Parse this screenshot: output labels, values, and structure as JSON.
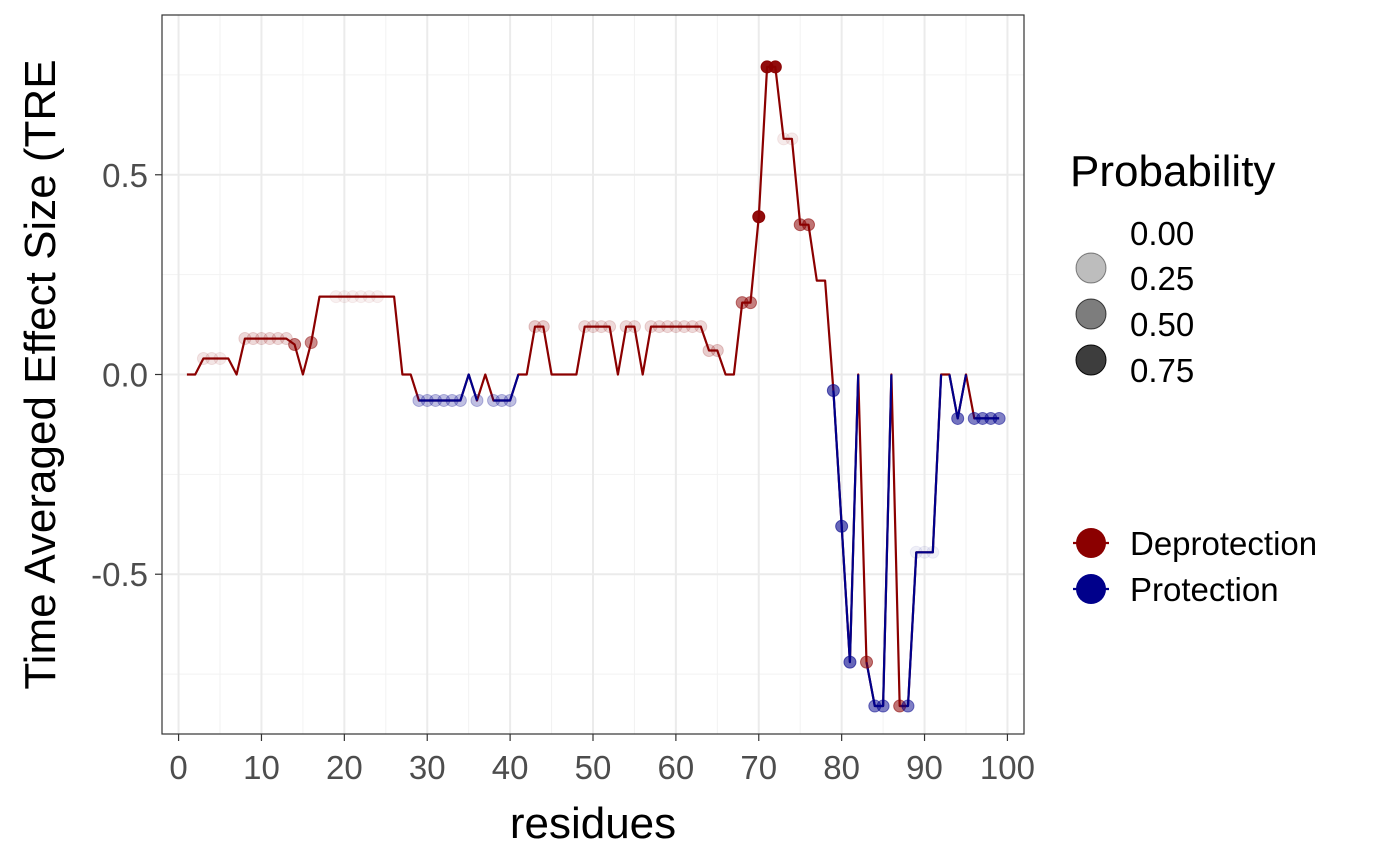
{
  "chart_data": {
    "type": "line",
    "title": "",
    "xlabel": "residues",
    "ylabel": "Time Averaged Effect Size (TRE",
    "xlim": [
      -2,
      102
    ],
    "ylim": [
      -0.9,
      0.9
    ],
    "x_ticks": [
      0,
      10,
      20,
      30,
      40,
      50,
      60,
      70,
      80,
      90,
      100
    ],
    "x_tick_labels": [
      "0",
      "10",
      "20",
      "30",
      "40",
      "50",
      "60",
      "70",
      "80",
      "90",
      "100"
    ],
    "y_ticks": [
      -0.5,
      0,
      0.5
    ],
    "y_tick_labels": [
      "-0.5",
      "0.0",
      "0.5"
    ],
    "grid": true,
    "legend_position": "right",
    "size_legend": {
      "title": "Probability",
      "entries": [
        {
          "label": "0.00",
          "value": 0.0
        },
        {
          "label": "0.25",
          "value": 0.25
        },
        {
          "label": "0.50",
          "value": 0.5
        },
        {
          "label": "0.75",
          "value": 0.75
        }
      ]
    },
    "color_legend": {
      "entries": [
        {
          "label": "Deprotection",
          "color": "#8b0000"
        },
        {
          "label": "Protection",
          "color": "#00008b"
        }
      ]
    },
    "colors": {
      "Deprotection": "#8b0000",
      "Protection": "#00008b"
    },
    "series": [
      {
        "name": "Deprotection",
        "line": [
          [
            1,
            0
          ],
          [
            2,
            0
          ],
          [
            3,
            0.04
          ],
          [
            4,
            0.04
          ],
          [
            5,
            0.04
          ],
          [
            6,
            0.04
          ],
          [
            7,
            0
          ],
          [
            8,
            0.09
          ],
          [
            9,
            0.09
          ],
          [
            10,
            0.09
          ],
          [
            11,
            0.09
          ],
          [
            12,
            0.09
          ],
          [
            13,
            0.09
          ],
          [
            14,
            0.075
          ],
          [
            15,
            0
          ],
          [
            16,
            0.08
          ],
          [
            17,
            0.195
          ],
          [
            18,
            0.195
          ],
          [
            19,
            0.195
          ],
          [
            20,
            0.195
          ],
          [
            21,
            0.195
          ],
          [
            22,
            0.195
          ],
          [
            23,
            0.195
          ],
          [
            24,
            0.195
          ],
          [
            25,
            0.195
          ],
          [
            26,
            0.195
          ],
          [
            27,
            0
          ],
          [
            28,
            0
          ],
          [
            29,
            -0.065
          ],
          [
            30,
            -0.065
          ],
          [
            31,
            -0.065
          ],
          [
            32,
            -0.065
          ],
          [
            33,
            -0.065
          ],
          [
            34,
            -0.065
          ],
          [
            35,
            0
          ],
          [
            36,
            -0.065
          ],
          [
            37,
            0
          ],
          [
            38,
            -0.065
          ],
          [
            39,
            -0.065
          ],
          [
            40,
            -0.065
          ],
          [
            41,
            0
          ],
          [
            42,
            0
          ],
          [
            43,
            0.12
          ],
          [
            44,
            0.12
          ],
          [
            45,
            0
          ],
          [
            46,
            0
          ],
          [
            47,
            0
          ],
          [
            48,
            0
          ],
          [
            49,
            0.12
          ],
          [
            50,
            0.12
          ],
          [
            51,
            0.12
          ],
          [
            52,
            0.12
          ],
          [
            53,
            0
          ],
          [
            54,
            0.12
          ],
          [
            55,
            0.12
          ],
          [
            56,
            0
          ],
          [
            57,
            0.12
          ],
          [
            58,
            0.12
          ],
          [
            59,
            0.12
          ],
          [
            60,
            0.12
          ],
          [
            61,
            0.12
          ],
          [
            62,
            0.12
          ],
          [
            63,
            0.12
          ],
          [
            64,
            0.06
          ],
          [
            65,
            0.06
          ],
          [
            66,
            0
          ],
          [
            67,
            0
          ],
          [
            68,
            0.18
          ],
          [
            69,
            0.18
          ],
          [
            70,
            0.395
          ],
          [
            71,
            0.77
          ],
          [
            72,
            0.77
          ],
          [
            73,
            0.59
          ],
          [
            74,
            0.59
          ],
          [
            75,
            0.375
          ],
          [
            76,
            0.375
          ],
          [
            77,
            0.235
          ],
          [
            78,
            0.235
          ],
          [
            79,
            -0.04
          ],
          [
            80,
            -0.38
          ],
          [
            81,
            -0.72
          ],
          [
            82,
            0
          ],
          [
            83,
            -0.72
          ],
          [
            84,
            -0.83
          ],
          [
            85,
            -0.83
          ],
          [
            86,
            0
          ],
          [
            87,
            -0.83
          ],
          [
            88,
            -0.83
          ],
          [
            89,
            -0.445
          ],
          [
            90,
            -0.445
          ],
          [
            91,
            -0.445
          ],
          [
            92,
            0
          ],
          [
            93,
            0
          ],
          [
            94,
            -0.11
          ],
          [
            95,
            0
          ],
          [
            96,
            -0.11
          ],
          [
            97,
            -0.11
          ],
          [
            98,
            -0.11
          ],
          [
            99,
            -0.11
          ]
        ],
        "points": [
          {
            "x": 3,
            "y": 0.04,
            "p": 0.1
          },
          {
            "x": 4,
            "y": 0.04,
            "p": 0.1
          },
          {
            "x": 5,
            "y": 0.04,
            "p": 0.08
          },
          {
            "x": 8,
            "y": 0.09,
            "p": 0.15
          },
          {
            "x": 9,
            "y": 0.09,
            "p": 0.15
          },
          {
            "x": 10,
            "y": 0.09,
            "p": 0.15
          },
          {
            "x": 11,
            "y": 0.09,
            "p": 0.15
          },
          {
            "x": 12,
            "y": 0.09,
            "p": 0.15
          },
          {
            "x": 13,
            "y": 0.09,
            "p": 0.15
          },
          {
            "x": 14,
            "y": 0.075,
            "p": 0.5
          },
          {
            "x": 16,
            "y": 0.08,
            "p": 0.45
          },
          {
            "x": 19,
            "y": 0.195,
            "p": 0.03
          },
          {
            "x": 20,
            "y": 0.195,
            "p": 0.03
          },
          {
            "x": 21,
            "y": 0.195,
            "p": 0.03
          },
          {
            "x": 22,
            "y": 0.195,
            "p": 0.03
          },
          {
            "x": 23,
            "y": 0.195,
            "p": 0.03
          },
          {
            "x": 24,
            "y": 0.195,
            "p": 0.03
          },
          {
            "x": 43,
            "y": 0.12,
            "p": 0.2
          },
          {
            "x": 44,
            "y": 0.12,
            "p": 0.2
          },
          {
            "x": 49,
            "y": 0.12,
            "p": 0.15
          },
          {
            "x": 50,
            "y": 0.12,
            "p": 0.15
          },
          {
            "x": 51,
            "y": 0.12,
            "p": 0.15
          },
          {
            "x": 52,
            "y": 0.12,
            "p": 0.15
          },
          {
            "x": 54,
            "y": 0.12,
            "p": 0.15
          },
          {
            "x": 55,
            "y": 0.12,
            "p": 0.15
          },
          {
            "x": 57,
            "y": 0.12,
            "p": 0.15
          },
          {
            "x": 58,
            "y": 0.12,
            "p": 0.15
          },
          {
            "x": 59,
            "y": 0.12,
            "p": 0.15
          },
          {
            "x": 60,
            "y": 0.12,
            "p": 0.15
          },
          {
            "x": 61,
            "y": 0.12,
            "p": 0.15
          },
          {
            "x": 62,
            "y": 0.12,
            "p": 0.15
          },
          {
            "x": 63,
            "y": 0.12,
            "p": 0.15
          },
          {
            "x": 64,
            "y": 0.06,
            "p": 0.2
          },
          {
            "x": 65,
            "y": 0.06,
            "p": 0.2
          },
          {
            "x": 68,
            "y": 0.18,
            "p": 0.5
          },
          {
            "x": 69,
            "y": 0.18,
            "p": 0.5
          },
          {
            "x": 70,
            "y": 0.395,
            "p": 0.95
          },
          {
            "x": 71,
            "y": 0.77,
            "p": 0.95
          },
          {
            "x": 72,
            "y": 0.77,
            "p": 0.95
          },
          {
            "x": 73,
            "y": 0.59,
            "p": 0.08
          },
          {
            "x": 74,
            "y": 0.59,
            "p": 0.08
          },
          {
            "x": 75,
            "y": 0.375,
            "p": 0.55
          },
          {
            "x": 76,
            "y": 0.375,
            "p": 0.55
          },
          {
            "x": 83,
            "y": -0.72,
            "p": 0.55
          },
          {
            "x": 87,
            "y": -0.83,
            "p": 0.55
          }
        ]
      },
      {
        "name": "Protection",
        "line": [
          [
            29,
            -0.065
          ],
          [
            30,
            -0.065
          ],
          [
            31,
            -0.065
          ],
          [
            32,
            -0.065
          ],
          [
            33,
            -0.065
          ],
          [
            34,
            -0.065
          ],
          [
            35,
            0
          ],
          [
            36,
            -0.065
          ]
        ],
        "line_segments": [
          [
            [
              29,
              -0.065
            ],
            [
              30,
              -0.065
            ],
            [
              31,
              -0.065
            ],
            [
              32,
              -0.065
            ],
            [
              33,
              -0.065
            ],
            [
              34,
              -0.065
            ],
            [
              35,
              0
            ],
            [
              36,
              -0.065
            ]
          ],
          [
            [
              38,
              -0.065
            ],
            [
              39,
              -0.065
            ],
            [
              40,
              -0.065
            ],
            [
              41,
              0
            ]
          ],
          [
            [
              79,
              -0.04
            ],
            [
              80,
              -0.38
            ],
            [
              81,
              -0.72
            ],
            [
              82,
              0
            ]
          ],
          [
            [
              83,
              -0.72
            ],
            [
              84,
              -0.83
            ],
            [
              85,
              -0.83
            ],
            [
              86,
              0
            ]
          ],
          [
            [
              87,
              -0.83
            ],
            [
              88,
              -0.83
            ],
            [
              89,
              -0.445
            ],
            [
              90,
              -0.445
            ],
            [
              91,
              -0.445
            ],
            [
              92,
              0
            ]
          ],
          [
            [
              93,
              0
            ],
            [
              94,
              -0.11
            ],
            [
              95,
              0
            ]
          ],
          [
            [
              96,
              -0.11
            ],
            [
              97,
              -0.11
            ],
            [
              98,
              -0.11
            ],
            [
              99,
              -0.11
            ]
          ]
        ],
        "points": [
          {
            "x": 29,
            "y": -0.065,
            "p": 0.25
          },
          {
            "x": 30,
            "y": -0.065,
            "p": 0.25
          },
          {
            "x": 31,
            "y": -0.065,
            "p": 0.25
          },
          {
            "x": 32,
            "y": -0.065,
            "p": 0.25
          },
          {
            "x": 33,
            "y": -0.065,
            "p": 0.25
          },
          {
            "x": 34,
            "y": -0.065,
            "p": 0.25
          },
          {
            "x": 36,
            "y": -0.065,
            "p": 0.25
          },
          {
            "x": 38,
            "y": -0.065,
            "p": 0.25
          },
          {
            "x": 39,
            "y": -0.065,
            "p": 0.25
          },
          {
            "x": 40,
            "y": -0.065,
            "p": 0.25
          },
          {
            "x": 79,
            "y": -0.04,
            "p": 0.6
          },
          {
            "x": 80,
            "y": -0.38,
            "p": 0.6
          },
          {
            "x": 81,
            "y": -0.72,
            "p": 0.6
          },
          {
            "x": 84,
            "y": -0.83,
            "p": 0.5
          },
          {
            "x": 85,
            "y": -0.83,
            "p": 0.5
          },
          {
            "x": 88,
            "y": -0.83,
            "p": 0.5
          },
          {
            "x": 89,
            "y": -0.445,
            "p": 0.05
          },
          {
            "x": 90,
            "y": -0.445,
            "p": 0.05
          },
          {
            "x": 91,
            "y": -0.445,
            "p": 0.05
          },
          {
            "x": 94,
            "y": -0.11,
            "p": 0.55
          },
          {
            "x": 96,
            "y": -0.11,
            "p": 0.5
          },
          {
            "x": 97,
            "y": -0.11,
            "p": 0.5
          },
          {
            "x": 98,
            "y": -0.11,
            "p": 0.5
          },
          {
            "x": 99,
            "y": -0.11,
            "p": 0.5
          }
        ]
      }
    ]
  }
}
